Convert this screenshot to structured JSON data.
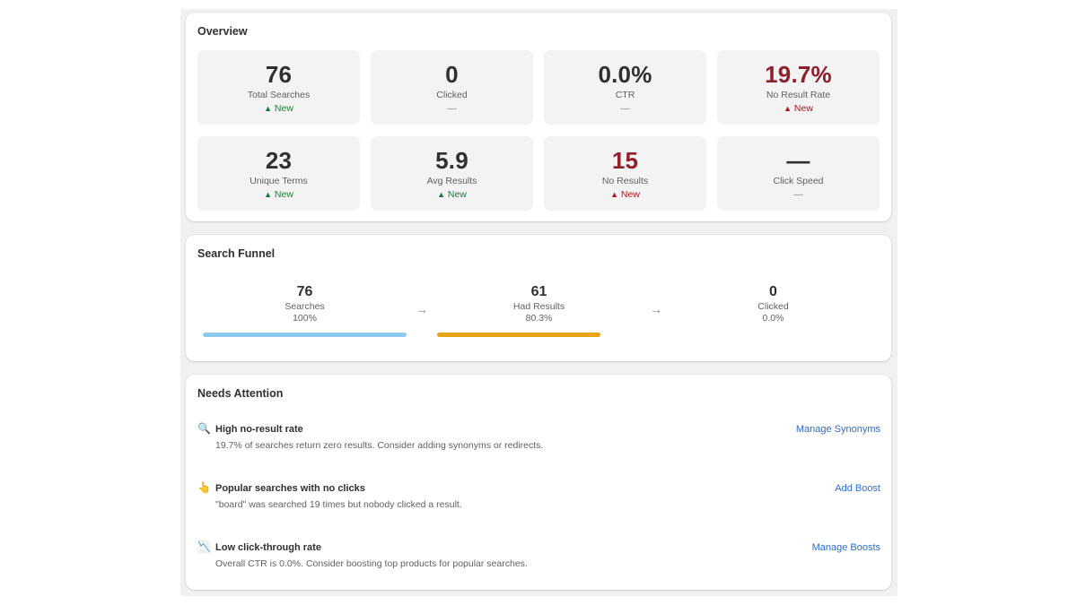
{
  "overview": {
    "title": "Overview",
    "stats": [
      {
        "value": "76",
        "label": "Total Searches",
        "change": "New",
        "trend": "up",
        "arrow": "▲"
      },
      {
        "value": "0",
        "label": "Clicked",
        "change": "—",
        "trend": "neutral",
        "arrow": ""
      },
      {
        "value": "0.0%",
        "label": "CTR",
        "change": "—",
        "trend": "neutral",
        "arrow": ""
      },
      {
        "value": "19.7%",
        "label": "No Result Rate",
        "change": "New",
        "trend": "down",
        "arrow": "▲"
      },
      {
        "value": "23",
        "label": "Unique Terms",
        "change": "New",
        "trend": "up",
        "arrow": "▲"
      },
      {
        "value": "5.9",
        "label": "Avg Results",
        "change": "New",
        "trend": "up",
        "arrow": "▲"
      },
      {
        "value": "15",
        "label": "No Results",
        "change": "New",
        "trend": "down",
        "arrow": "▲"
      },
      {
        "value": "—",
        "label": "Click Speed",
        "change": "—",
        "trend": "neutral",
        "arrow": ""
      }
    ]
  },
  "funnel": {
    "title": "Search Funnel",
    "steps": [
      {
        "count": "76",
        "label": "Searches",
        "pct": "100%",
        "fraction": 1.0,
        "color": "#8ec9ef"
      },
      {
        "count": "61",
        "label": "Had Results",
        "pct": "80.3%",
        "fraction": 0.803,
        "color": "#e8a317"
      },
      {
        "count": "0",
        "label": "Clicked",
        "pct": "0.0%",
        "fraction": 0.0,
        "color": "#c9c9c9"
      }
    ],
    "arrow_icon": "arrow-right-icon"
  },
  "attention": {
    "title": "Needs Attention",
    "items": [
      {
        "icon": "🔍",
        "icon_name": "magnifier-icon",
        "title": "High no-result rate",
        "description": "19.7% of searches return zero results. Consider adding synonyms or redirects.",
        "action": "Manage Synonyms"
      },
      {
        "icon": "👆",
        "icon_name": "pointing-hand-icon",
        "title": "Popular searches with no clicks",
        "description": "\"board\" was searched 19 times but nobody clicked a result.",
        "action": "Add Boost"
      },
      {
        "icon": "📉",
        "icon_name": "chart-decreasing-icon",
        "title": "Low click-through rate",
        "description": "Overall CTR is 0.0%. Consider boosting top products for popular searches.",
        "action": "Manage Boosts"
      }
    ]
  },
  "colors": {
    "bad_value": "#8e1f2b",
    "trend_up": "#1a7a3a",
    "trend_down": "#b3131f",
    "link": "#2c6ecb"
  }
}
